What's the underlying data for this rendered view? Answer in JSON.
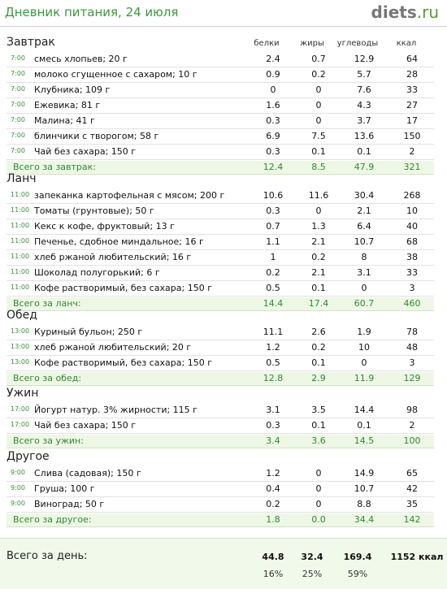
{
  "header": {
    "title": "Дневник питания, 24 июля",
    "logo_main": "diets",
    "logo_tld": ".ru"
  },
  "columns": {
    "protein": "белки",
    "fat": "жиры",
    "carbs": "углеводы",
    "kcal": "ккал"
  },
  "sections": [
    {
      "title": "Завтрак",
      "rows": [
        {
          "time": "7:00",
          "name": "смесь хлопьев; 20 г",
          "p": "2.4",
          "f": "0.7",
          "c": "12.9",
          "k": "64"
        },
        {
          "time": "7:00",
          "name": "молоко сгущенное с сахаром; 10 г",
          "p": "0.9",
          "f": "0.2",
          "c": "5.7",
          "k": "28"
        },
        {
          "time": "7:00",
          "name": "Клубника; 109 г",
          "p": "0",
          "f": "0",
          "c": "7.6",
          "k": "33"
        },
        {
          "time": "7:00",
          "name": "Ежевика; 81 г",
          "p": "1.6",
          "f": "0",
          "c": "4.3",
          "k": "27"
        },
        {
          "time": "7:00",
          "name": "Малина; 41 г",
          "p": "0.3",
          "f": "0",
          "c": "3.7",
          "k": "17"
        },
        {
          "time": "7:00",
          "name": "блинчики с творогом; 58 г",
          "p": "6.9",
          "f": "7.5",
          "c": "13.6",
          "k": "150"
        },
        {
          "time": "7:00",
          "name": "Чай без сахара; 150 г",
          "p": "0.3",
          "f": "0.1",
          "c": "0.1",
          "k": "2"
        }
      ],
      "total": {
        "label": "Всего за завтрак:",
        "p": "12.4",
        "f": "8.5",
        "c": "47.9",
        "k": "321"
      }
    },
    {
      "title": "Ланч",
      "rows": [
        {
          "time": "11:00",
          "name": "запеканка картофельная с мясом; 200 г",
          "p": "10.6",
          "f": "11.6",
          "c": "30.4",
          "k": "268"
        },
        {
          "time": "11:00",
          "name": "Томаты (грунтовые); 50 г",
          "p": "0.3",
          "f": "0",
          "c": "2.1",
          "k": "10"
        },
        {
          "time": "11:00",
          "name": "Кекс к кофе, фруктовый; 13 г",
          "p": "0.7",
          "f": "1.3",
          "c": "6.4",
          "k": "40"
        },
        {
          "time": "11:00",
          "name": "Печенье, сдобное миндальное; 16 г",
          "p": "1.1",
          "f": "2.1",
          "c": "10.7",
          "k": "68"
        },
        {
          "time": "11:00",
          "name": "хлеб ржаной любительский; 16 г",
          "p": "1",
          "f": "0.2",
          "c": "8",
          "k": "38"
        },
        {
          "time": "11:00",
          "name": "Шоколад полугорький; 6 г",
          "p": "0.2",
          "f": "2.1",
          "c": "3.1",
          "k": "33"
        },
        {
          "time": "11:00",
          "name": "Кофе растворимый, без сахара; 150 г",
          "p": "0.5",
          "f": "0.1",
          "c": "0",
          "k": "3"
        }
      ],
      "total": {
        "label": "Всего за ланч:",
        "p": "14.4",
        "f": "17.4",
        "c": "60.7",
        "k": "460"
      }
    },
    {
      "title": "Обед",
      "rows": [
        {
          "time": "13:00",
          "name": "Куриный бульон; 250 г",
          "p": "11.1",
          "f": "2.6",
          "c": "1.9",
          "k": "78"
        },
        {
          "time": "13:00",
          "name": "хлеб ржаной любительский; 20 г",
          "p": "1.2",
          "f": "0.2",
          "c": "10",
          "k": "48"
        },
        {
          "time": "13:00",
          "name": "Кофе растворимый, без сахара; 150 г",
          "p": "0.5",
          "f": "0.1",
          "c": "0",
          "k": "3"
        }
      ],
      "total": {
        "label": "Всего за обед:",
        "p": "12.8",
        "f": "2.9",
        "c": "11.9",
        "k": "129"
      }
    },
    {
      "title": "Ужин",
      "rows": [
        {
          "time": "17:00",
          "name": "Йогурт натур. 3% жирности; 115 г",
          "p": "3.1",
          "f": "3.5",
          "c": "14.4",
          "k": "98"
        },
        {
          "time": "17:00",
          "name": "Чай без сахара; 150 г",
          "p": "0.3",
          "f": "0.1",
          "c": "0.1",
          "k": "2"
        }
      ],
      "total": {
        "label": "Всего за ужин:",
        "p": "3.4",
        "f": "3.6",
        "c": "14.5",
        "k": "100"
      }
    },
    {
      "title": "Другое",
      "rows": [
        {
          "time": "9:00",
          "name": "Слива (садовая); 150 г",
          "p": "1.2",
          "f": "0",
          "c": "14.9",
          "k": "65"
        },
        {
          "time": "9:00",
          "name": "Груша; 100 г",
          "p": "0.4",
          "f": "0",
          "c": "10.7",
          "k": "42"
        },
        {
          "time": "9:00",
          "name": "Виноград; 50 г",
          "p": "0.2",
          "f": "0",
          "c": "8.8",
          "k": "35"
        }
      ],
      "total": {
        "label": "Всего за другое:",
        "p": "1.8",
        "f": "0.0",
        "c": "34.4",
        "k": "142"
      }
    }
  ],
  "day_total": {
    "label": "Всего за день:",
    "p": "44.8",
    "f": "32.4",
    "c": "169.4",
    "k": "1152 ккал",
    "p_pct": "16%",
    "f_pct": "25%",
    "c_pct": "59%"
  }
}
